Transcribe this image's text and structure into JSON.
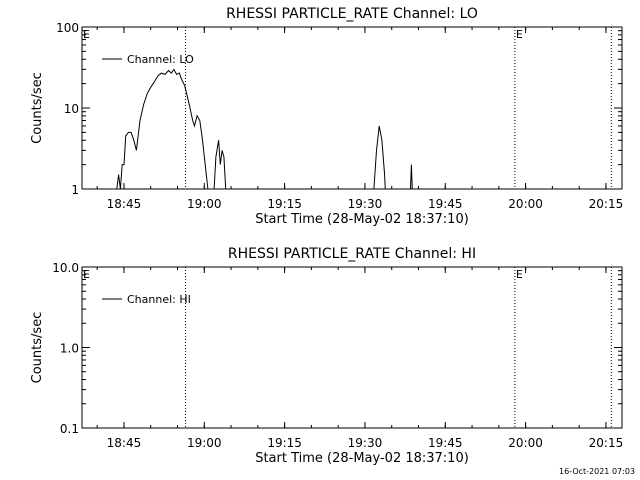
{
  "chart_data": [
    {
      "type": "line",
      "title": "RHESSI PARTICLE_RATE Channel: LO",
      "xlabel": "Start Time (28-May-02 18:37:10)",
      "ylabel": "Counts/sec",
      "x_ticks": [
        "18:45",
        "19:00",
        "19:15",
        "19:30",
        "19:45",
        "20:00",
        "20:15"
      ],
      "x_range": [
        "18:37:10",
        "20:18:00"
      ],
      "y_scale": "log",
      "y_range": [
        1,
        100
      ],
      "y_ticks": [
        "1",
        "10",
        "100"
      ],
      "legend": "top-left",
      "series": [
        {
          "name": "Channel: LO",
          "points": [
            [
              "18:43:00",
              0.5
            ],
            [
              "18:43:40",
              1.0
            ],
            [
              "18:44:00",
              1.5
            ],
            [
              "18:44:20",
              1.0
            ],
            [
              "18:44:40",
              2.0
            ],
            [
              "18:45:00",
              2.0
            ],
            [
              "18:45:20",
              4.5
            ],
            [
              "18:45:50",
              5.0
            ],
            [
              "18:46:20",
              5.0
            ],
            [
              "18:46:50",
              4.0
            ],
            [
              "18:47:20",
              3.0
            ],
            [
              "18:48:00",
              7.0
            ],
            [
              "18:48:40",
              11.0
            ],
            [
              "18:49:20",
              15.0
            ],
            [
              "18:50:00",
              18.0
            ],
            [
              "18:50:40",
              21.0
            ],
            [
              "18:51:20",
              25.0
            ],
            [
              "18:52:00",
              27.0
            ],
            [
              "18:52:40",
              26.0
            ],
            [
              "18:53:20",
              29.0
            ],
            [
              "18:53:50",
              27.0
            ],
            [
              "18:54:20",
              30.0
            ],
            [
              "18:54:50",
              26.0
            ],
            [
              "18:55:20",
              27.0
            ],
            [
              "18:55:50",
              22.0
            ],
            [
              "18:56:20",
              19.0
            ],
            [
              "18:56:50",
              14.0
            ],
            [
              "18:57:20",
              10.0
            ],
            [
              "18:57:50",
              7.0
            ],
            [
              "18:58:10",
              6.0
            ],
            [
              "18:58:40",
              8.0
            ],
            [
              "18:59:10",
              7.0
            ],
            [
              "18:59:40",
              4.0
            ],
            [
              "19:00:10",
              2.0
            ],
            [
              "19:00:40",
              1.0
            ],
            [
              "19:01:00",
              0.5
            ],
            [
              "19:01:30",
              0.5
            ],
            [
              "19:01:50",
              1.0
            ],
            [
              "19:02:10",
              2.5
            ],
            [
              "19:02:40",
              4.0
            ],
            [
              "19:03:00",
              2.0
            ],
            [
              "19:03:20",
              3.0
            ],
            [
              "19:03:40",
              2.5
            ],
            [
              "19:04:00",
              1.0
            ],
            [
              "19:04:20",
              0.5
            ],
            [
              "19:31:20",
              0.5
            ],
            [
              "19:31:40",
              1.0
            ],
            [
              "19:32:10",
              3.0
            ],
            [
              "19:32:40",
              6.0
            ],
            [
              "19:33:10",
              4.0
            ],
            [
              "19:33:40",
              1.5
            ],
            [
              "19:34:00",
              0.5
            ],
            [
              "19:38:20",
              0.5
            ],
            [
              "19:38:40",
              2.0
            ],
            [
              "19:39:00",
              0.5
            ]
          ]
        }
      ],
      "dotted_lines": [
        "18:56:30",
        "19:58:00",
        "20:16:00"
      ],
      "markers": [
        {
          "label": "E",
          "time": "18:37:10"
        },
        {
          "label": "E",
          "time": "19:58:00"
        }
      ]
    },
    {
      "type": "line",
      "title": "RHESSI PARTICLE_RATE Channel: HI",
      "xlabel": "Start Time (28-May-02 18:37:10)",
      "ylabel": "Counts/sec",
      "x_ticks": [
        "18:45",
        "19:00",
        "19:15",
        "19:30",
        "19:45",
        "20:00",
        "20:15"
      ],
      "x_range": [
        "18:37:10",
        "20:18:00"
      ],
      "y_scale": "log",
      "y_range": [
        0.1,
        10.0
      ],
      "y_ticks": [
        "0.1",
        "1.0",
        "10.0"
      ],
      "legend": "top-left",
      "series": [
        {
          "name": "Channel: HI",
          "points": []
        }
      ],
      "dotted_lines": [
        "18:56:30",
        "19:58:00",
        "20:16:00"
      ],
      "markers": [
        {
          "label": "E",
          "time": "18:37:10"
        },
        {
          "label": "E",
          "time": "19:58:00"
        }
      ]
    }
  ],
  "footer": {
    "timestamp": "16-Oct-2021 07:03"
  }
}
